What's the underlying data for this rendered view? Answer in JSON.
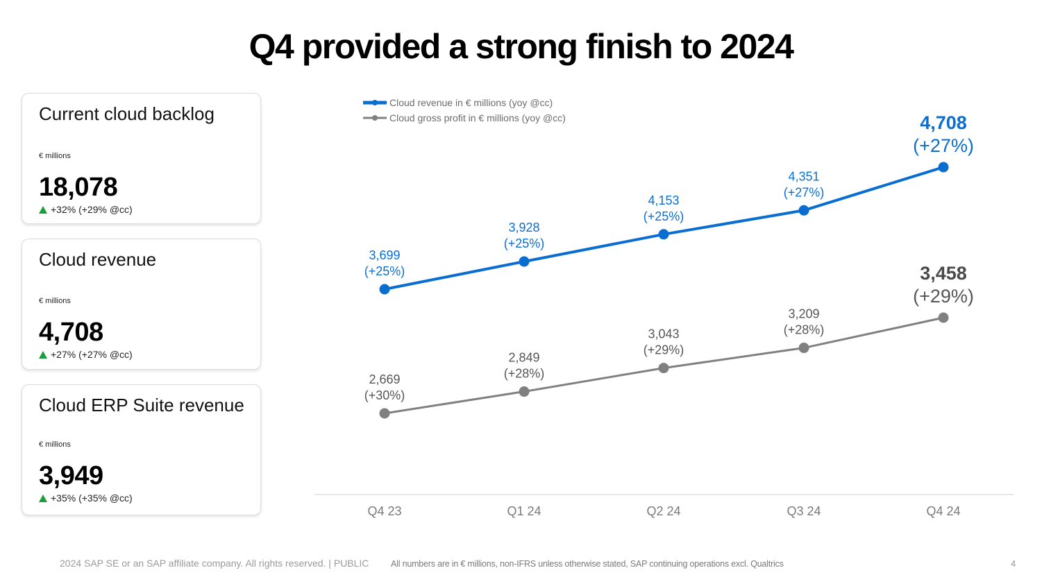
{
  "title": "Q4 provided a strong finish to 2024",
  "kpis": [
    {
      "title": "Current cloud backlog",
      "unit": "€ millions",
      "value": "18,078",
      "growth": "+32% (+29% @cc)"
    },
    {
      "title": "Cloud revenue",
      "unit": "€ millions",
      "value": "4,708",
      "growth": "+27% (+27% @cc)"
    },
    {
      "title": "Cloud ERP Suite revenue",
      "unit": "€ millions",
      "value": "3,949",
      "growth": "+35% (+35% @cc)"
    }
  ],
  "colors": {
    "revenue": "#0a6ed1",
    "profit": "#808080",
    "growth_up": "#1a9e3a"
  },
  "chart_data": {
    "type": "line",
    "categories": [
      "Q4 23",
      "Q1 24",
      "Q2 24",
      "Q3 24",
      "Q4 24"
    ],
    "series": [
      {
        "name": "Cloud revenue in € millions (yoy @cc)",
        "values": [
          3699,
          3928,
          4153,
          4351,
          4708
        ],
        "value_labels": [
          "3,699",
          "3,928",
          "4,153",
          "4,351",
          "4,708"
        ],
        "growth_labels": [
          "(+25%)",
          "(+25%)",
          "(+25%)",
          "(+27%)",
          "(+27%)"
        ]
      },
      {
        "name": "Cloud gross profit in € millions (yoy @cc)",
        "values": [
          2669,
          2849,
          3043,
          3209,
          3458
        ],
        "value_labels": [
          "2,669",
          "2,849",
          "3,043",
          "3,209",
          "3,458"
        ],
        "growth_labels": [
          "(+30%)",
          "(+28%)",
          "(+29%)",
          "(+28%)",
          "(+29%)"
        ]
      }
    ],
    "legend": "top-left",
    "grid": false
  },
  "footer": {
    "copyright": "2024 SAP SE or an SAP affiliate company. All rights reserved.  |  PUBLIC",
    "note": "All numbers are in € millions, non-IFRS unless otherwise stated, SAP continuing operations excl. Qualtrics",
    "page": "4"
  }
}
